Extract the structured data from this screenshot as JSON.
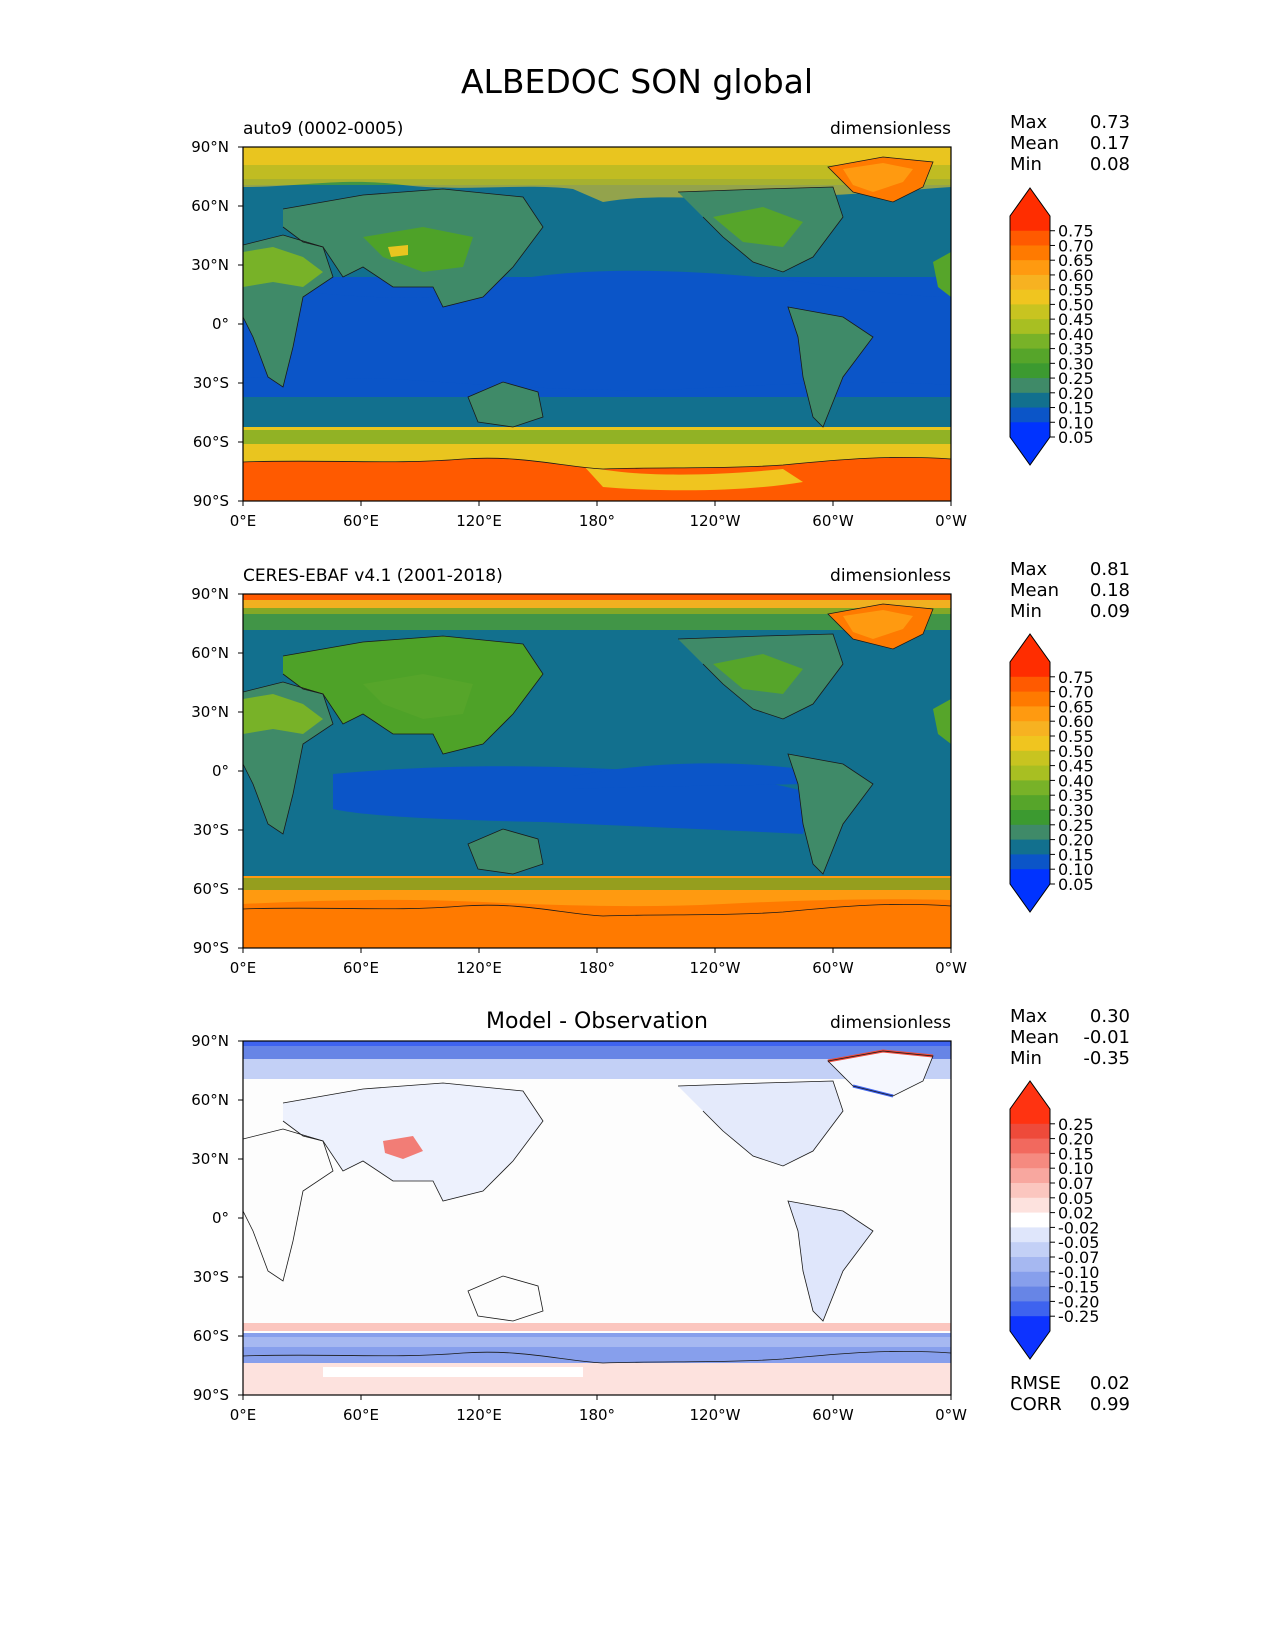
{
  "title": "ALBEDOC SON global",
  "x_ticks": [
    "0°E",
    "60°E",
    "120°E",
    "180°",
    "120°W",
    "60°W",
    "0°W"
  ],
  "y_ticks": [
    "90°N",
    "60°N",
    "30°N",
    "0°",
    "30°S",
    "60°S",
    "90°S"
  ],
  "colors": {
    "ocean_low": "#0b55c8",
    "ocean_mid": "#12708e",
    "land_dark": "#3f8a68",
    "land_green": "#4ea228",
    "yellow": "#e9c51f",
    "orange": "#ff5a00",
    "diff_blue": "#5e84e6",
    "diff_red": "#e8453a"
  },
  "panels": [
    {
      "left_title": "auto9 (0002-0005)",
      "right_title": "dimensionless",
      "stats": [
        {
          "label": "Max",
          "value": "0.73"
        },
        {
          "label": "Mean",
          "value": "0.17"
        },
        {
          "label": "Min",
          "value": "0.08"
        }
      ],
      "colorbar": {
        "ticks": [
          "0.75",
          "0.70",
          "0.65",
          "0.60",
          "0.55",
          "0.50",
          "0.45",
          "0.40",
          "0.35",
          "0.30",
          "0.25",
          "0.20",
          "0.15",
          "0.10",
          "0.05"
        ],
        "colors": [
          "#ff2d00",
          "#ff5a00",
          "#ff7a00",
          "#ff9a10",
          "#f7b221",
          "#f0c51f",
          "#c8c420",
          "#a8bf22",
          "#78b228",
          "#56a52a",
          "#3c9a30",
          "#3f8a68",
          "#12708e",
          "#0b55c8",
          "#0033ff"
        ],
        "top_color": "#ff2d00",
        "bottom_color": "#0033ff"
      },
      "extra_stats": []
    },
    {
      "left_title": "CERES-EBAF v4.1 (2001-2018)",
      "right_title": "dimensionless",
      "stats": [
        {
          "label": "Max",
          "value": "0.81"
        },
        {
          "label": "Mean",
          "value": "0.18"
        },
        {
          "label": "Min",
          "value": "0.09"
        }
      ],
      "colorbar": {
        "ticks": [
          "0.75",
          "0.70",
          "0.65",
          "0.60",
          "0.55",
          "0.50",
          "0.45",
          "0.40",
          "0.35",
          "0.30",
          "0.25",
          "0.20",
          "0.15",
          "0.10",
          "0.05"
        ],
        "colors": [
          "#ff2d00",
          "#ff5a00",
          "#ff7a00",
          "#ff9a10",
          "#f7b221",
          "#f0c51f",
          "#c8c420",
          "#a8bf22",
          "#78b228",
          "#56a52a",
          "#3c9a30",
          "#3f8a68",
          "#12708e",
          "#0b55c8",
          "#0033ff"
        ],
        "top_color": "#ff2d00",
        "bottom_color": "#0033ff"
      },
      "extra_stats": []
    },
    {
      "center_title": "Model - Observation",
      "right_title": "dimensionless",
      "stats": [
        {
          "label": "Max",
          "value": "0.30"
        },
        {
          "label": "Mean",
          "value": "-0.01"
        },
        {
          "label": "Min",
          "value": "-0.35"
        }
      ],
      "colorbar": {
        "ticks": [
          "0.25",
          "0.20",
          "0.15",
          "0.10",
          "0.07",
          "0.05",
          "0.02",
          "-0.02",
          "-0.05",
          "-0.07",
          "-0.10",
          "-0.15",
          "-0.20",
          "-0.25"
        ],
        "colors": [
          "#ff3311",
          "#ee4a3a",
          "#f2695e",
          "#f58a80",
          "#f8a79f",
          "#fbc6bf",
          "#fde2de",
          "#ffffff",
          "#dfe6fb",
          "#c3d0f6",
          "#a6b8f1",
          "#879fec",
          "#6785e6",
          "#3e63ef",
          "#0d33ff"
        ],
        "top_color": "#ff3311",
        "bottom_color": "#0d33ff"
      },
      "extra_stats": [
        {
          "label": "RMSE",
          "value": "0.02"
        },
        {
          "label": "CORR",
          "value": "0.99"
        }
      ]
    }
  ]
}
